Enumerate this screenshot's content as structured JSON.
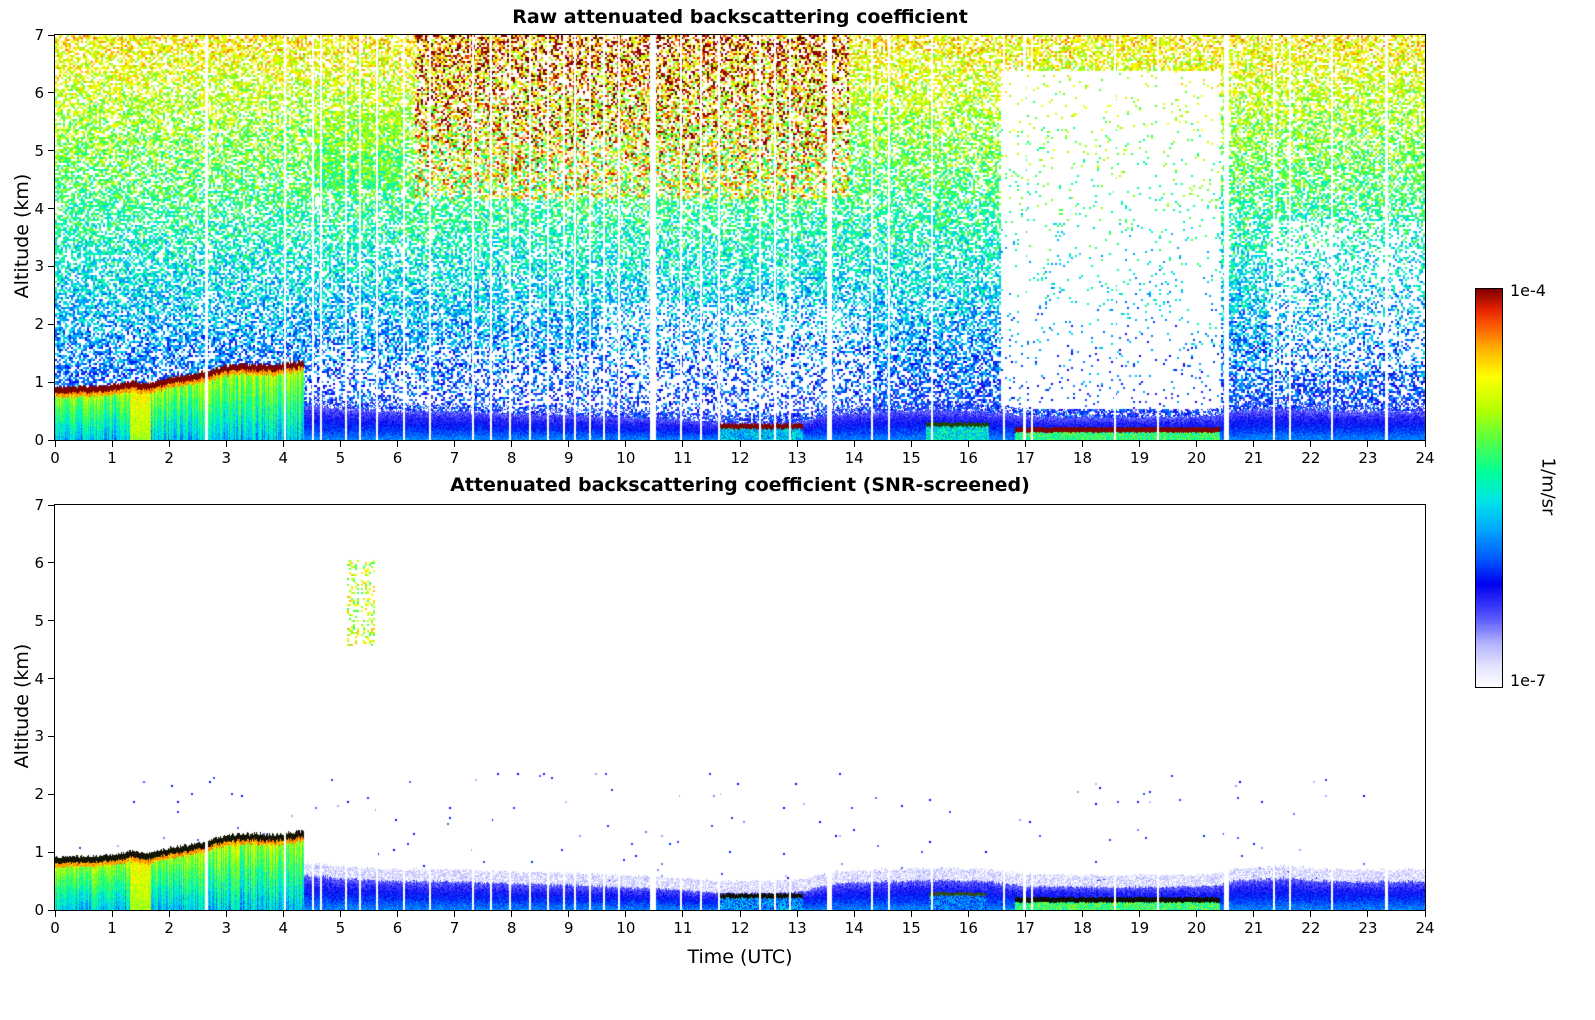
{
  "colorbar": {
    "max_label": "1e-4",
    "min_label": "1e-7",
    "title": "1/m/sr",
    "scale": "log",
    "stops": [
      [
        0,
        "#ffffff"
      ],
      [
        0.05,
        "#e6e6ff"
      ],
      [
        0.11,
        "#b3b3ff"
      ],
      [
        0.18,
        "#5050ff"
      ],
      [
        0.26,
        "#0000ee"
      ],
      [
        0.32,
        "#0055ff"
      ],
      [
        0.4,
        "#00aaff"
      ],
      [
        0.47,
        "#00e6e6"
      ],
      [
        0.54,
        "#00ff99"
      ],
      [
        0.62,
        "#55ff44"
      ],
      [
        0.7,
        "#b8ff00"
      ],
      [
        0.78,
        "#ffff00"
      ],
      [
        0.85,
        "#ffb300"
      ],
      [
        0.9,
        "#ff6600"
      ],
      [
        0.95,
        "#e62200"
      ],
      [
        1,
        "#800000"
      ]
    ]
  },
  "shared_features": {
    "bl_end_t": 4.35,
    "cap_thickness_km": 0.1,
    "plume": {
      "t": [
        1.3,
        1.68
      ]
    },
    "bl_top_km": [
      [
        0,
        0.92
      ],
      [
        0.7,
        0.93
      ],
      [
        1.1,
        0.97
      ],
      [
        1.35,
        1.02
      ],
      [
        1.6,
        0.97
      ],
      [
        2.0,
        1.07
      ],
      [
        2.4,
        1.13
      ],
      [
        2.8,
        1.24
      ],
      [
        3.1,
        1.3
      ],
      [
        3.5,
        1.32
      ],
      [
        3.8,
        1.3
      ],
      [
        4.1,
        1.33
      ],
      [
        4.35,
        1.37
      ]
    ],
    "band_top_km": [
      [
        4.35,
        0.62
      ],
      [
        5,
        0.55
      ],
      [
        6,
        0.5
      ],
      [
        7,
        0.5
      ],
      [
        8,
        0.46
      ],
      [
        9,
        0.44
      ],
      [
        10,
        0.4
      ],
      [
        11,
        0.36
      ],
      [
        11.6,
        0.3
      ],
      [
        12.5,
        0.3
      ],
      [
        13.1,
        0.33
      ],
      [
        13.6,
        0.46
      ],
      [
        14.5,
        0.5
      ],
      [
        15.5,
        0.52
      ],
      [
        16.3,
        0.5
      ],
      [
        17,
        0.42
      ],
      [
        18,
        0.4
      ],
      [
        19,
        0.4
      ],
      [
        20.3,
        0.42
      ],
      [
        20.7,
        0.52
      ],
      [
        21.5,
        0.55
      ],
      [
        22.5,
        0.5
      ],
      [
        24,
        0.5
      ]
    ],
    "stripes": [
      [
        2.62,
        0.05
      ],
      [
        4.02,
        0.03
      ],
      [
        4.5,
        0.03
      ],
      [
        4.65,
        0.03
      ],
      [
        5.08,
        0.04
      ],
      [
        5.33,
        0.03
      ],
      [
        5.62,
        0.03
      ],
      [
        6.1,
        0.03
      ],
      [
        6.55,
        0.04
      ],
      [
        7.3,
        0.03
      ],
      [
        7.62,
        0.03
      ],
      [
        7.95,
        0.03
      ],
      [
        8.3,
        0.04
      ],
      [
        8.62,
        0.03
      ],
      [
        8.9,
        0.03
      ],
      [
        9.1,
        0.04
      ],
      [
        9.35,
        0.03
      ],
      [
        9.6,
        0.03
      ],
      [
        9.86,
        0.03
      ],
      [
        10.42,
        0.1
      ],
      [
        10.95,
        0.04
      ],
      [
        11.3,
        0.03
      ],
      [
        11.62,
        0.03
      ],
      [
        12.33,
        0.03
      ],
      [
        12.6,
        0.04
      ],
      [
        12.85,
        0.03
      ],
      [
        13.52,
        0.09
      ],
      [
        14.3,
        0.04
      ],
      [
        14.6,
        0.03
      ],
      [
        15.35,
        0.03
      ],
      [
        16.6,
        0.04
      ],
      [
        16.95,
        0.05
      ],
      [
        17.1,
        0.03
      ],
      [
        18.55,
        0.03
      ],
      [
        19.3,
        0.03
      ],
      [
        20.48,
        0.09
      ],
      [
        21.33,
        0.04
      ],
      [
        21.62,
        0.03
      ],
      [
        22.35,
        0.03
      ],
      [
        23.3,
        0.05
      ]
    ]
  },
  "chart_data": [
    {
      "type": "heatmap",
      "title": "Raw attenuated backscattering coefficient",
      "xlabel": "",
      "ylabel": "Altitude (km)",
      "xlim": [
        0,
        24
      ],
      "ylim": [
        0,
        7
      ],
      "xticks": [
        0,
        1,
        2,
        3,
        4,
        5,
        6,
        7,
        8,
        9,
        10,
        11,
        12,
        13,
        14,
        15,
        16,
        17,
        18,
        19,
        20,
        21,
        22,
        23,
        24
      ],
      "yticks": [
        0,
        1,
        2,
        3,
        4,
        5,
        6,
        7
      ],
      "value_units": "1/m/sr",
      "value_range": [
        "1e-7",
        "1e-4"
      ],
      "features": {
        "noise": {
          "base_density": 0.6,
          "hot_region": {
            "t": [
              6.3,
              13.9
            ],
            "alt": [
              4.2,
              7
            ]
          },
          "dense_blob": {
            "t": [
              4.55,
              6.1
            ],
            "alt": [
              4.35,
              5.7
            ],
            "density": 0.85
          },
          "voids": [
            {
              "t": [
                16.55,
                20.4
              ],
              "alt": [
                0.55,
                6.4
              ],
              "density": 0.05
            },
            {
              "t": [
                21.2,
                24
              ],
              "alt": [
                1.2,
                3.8
              ],
              "density": 0.33
            },
            {
              "t": [
                9.5,
                14.2
              ],
              "alt": [
                0.5,
                2.4
              ],
              "density": 0.35
            },
            {
              "t": [
                4.4,
                9.5
              ],
              "alt": [
                0.5,
                1.6
              ],
              "density": 0.42
            }
          ]
        },
        "bl": {
          "cap_color": "#7f0000",
          "fringe_km": 0.12,
          "fringe_density": 0.3,
          "fringe_v": [
            0.18,
            0.35
          ],
          "caps": [
            {
              "t": [
                11.62,
                13.1
              ],
              "alt": 0.28,
              "thick": 0.07,
              "color": "#7f0000",
              "under": [
                0.3,
                0.55
              ]
            },
            {
              "t": [
                15.25,
                16.35
              ],
              "alt": 0.3,
              "thick": 0.05,
              "color": "#224400",
              "under": [
                0.35,
                0.6
              ]
            },
            {
              "t": [
                16.8,
                20.4
              ],
              "alt": 0.22,
              "thick": 0.07,
              "color": "#7f0000",
              "under": [
                0.45,
                0.7
              ]
            }
          ]
        }
      }
    },
    {
      "type": "heatmap",
      "title": "Attenuated backscattering coefficient (SNR-screened)",
      "xlabel": "Time (UTC)",
      "ylabel": "Altitude (km)",
      "xlim": [
        0,
        24
      ],
      "ylim": [
        0,
        7
      ],
      "xticks": [
        0,
        1,
        2,
        3,
        4,
        5,
        6,
        7,
        8,
        9,
        10,
        11,
        12,
        13,
        14,
        15,
        16,
        17,
        18,
        19,
        20,
        21,
        22,
        23,
        24
      ],
      "yticks": [
        0,
        1,
        2,
        3,
        4,
        5,
        6,
        7
      ],
      "value_units": "1/m/sr",
      "value_range": [
        "1e-7",
        "1e-4"
      ],
      "features": {
        "sparse_noise": {
          "density": 0.004,
          "alt_max": 2.4,
          "v": [
            0.1,
            0.3
          ]
        },
        "patches": [
          {
            "t": [
              5.08,
              5.58
            ],
            "alt": [
              4.6,
              6.05
            ],
            "density": 0.3,
            "v": [
              0.58,
              0.85
            ]
          }
        ],
        "bl": {
          "cap_color": "#141400",
          "fringe_km": 0.2,
          "fringe_density": 0.65,
          "fringe_v": [
            0.04,
            0.12
          ],
          "caps": [
            {
              "t": [
                11.62,
                13.1
              ],
              "alt": 0.28,
              "thick": 0.06,
              "color": "#101000",
              "under": [
                0.25,
                0.5
              ]
            },
            {
              "t": [
                15.3,
                16.3
              ],
              "alt": 0.3,
              "thick": 0.04,
              "color": "#334d1a",
              "under": [
                0.25,
                0.45
              ]
            },
            {
              "t": [
                16.8,
                20.4
              ],
              "alt": 0.22,
              "thick": 0.07,
              "color": "#101000",
              "under": [
                0.45,
                0.72
              ]
            }
          ]
        }
      }
    }
  ]
}
